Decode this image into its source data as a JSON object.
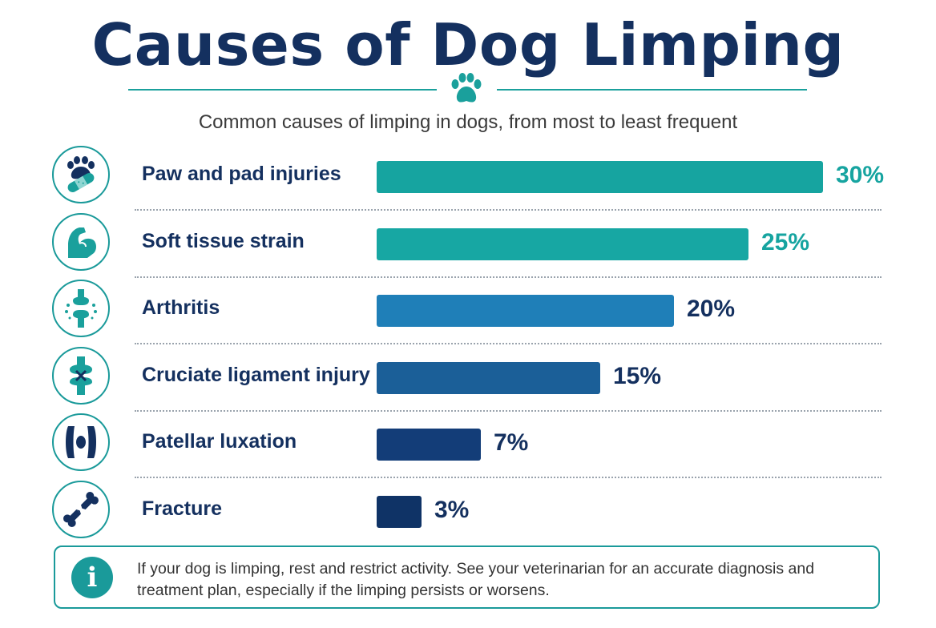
{
  "header": {
    "title": "Causes of Dog Limping",
    "subtitle": "Common causes of limping in dogs, from most to least frequent"
  },
  "chart_data": {
    "type": "bar",
    "orientation": "horizontal",
    "title": "Causes of Dog Limping",
    "subtitle": "Common causes of limping in dogs, from most to least frequent",
    "xlabel": "",
    "ylabel": "",
    "xlim": [
      0,
      30
    ],
    "grid": false,
    "legend": "none",
    "categories": [
      "Paw and pad injuries",
      "Soft tissue strain",
      "Arthritis",
      "Cruciate ligament injury",
      "Patellar luxation",
      "Fracture"
    ],
    "values": [
      30,
      25,
      20,
      15,
      7,
      3
    ],
    "value_labels": [
      "30%",
      "25%",
      "20%",
      "15%",
      "7%",
      "3%"
    ],
    "icons": [
      "paw-bandage-icon",
      "flexed-arm-icon",
      "arthritic-joint-icon",
      "knee-ligament-icon",
      "kneecap-icon",
      "broken-bone-icon"
    ],
    "bar_colors": [
      "#16a4a0",
      "#17a7a3",
      "#1f7fb8",
      "#1b5f98",
      "#133d78",
      "#0f3366"
    ],
    "label_colors": [
      "#16a4a0",
      "#16a4a0",
      "#14305f",
      "#14305f",
      "#14305f",
      "#14305f"
    ]
  },
  "note": {
    "icon": "info-icon",
    "icon_glyph": "i",
    "text": "If your dog is limping, rest and restrict activity. See your veterinarian for an accurate diagnosis and treatment plan, especially if the limping persists or worsens."
  },
  "colors": {
    "title": "#14305f",
    "accent": "#1a9a9a",
    "text": "#333333"
  }
}
